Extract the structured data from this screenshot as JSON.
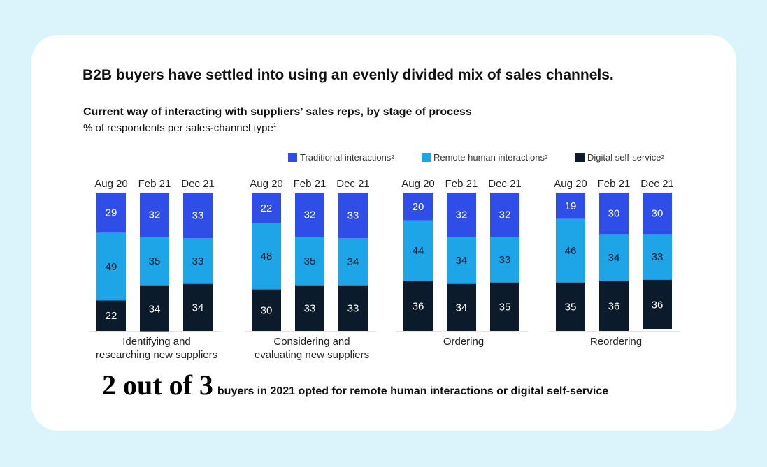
{
  "headline": "B2B buyers have settled into using an evenly divided mix of sales channels.",
  "subtitle": "Current way of interacting with suppliers’ sales reps, by stage of process",
  "unit_text": "% of respondents per sales-channel type",
  "unit_footnote": "1",
  "footer": {
    "big": "2 out of 3",
    "small": "buyers in 2021 opted for remote human interactions or digital self-service"
  },
  "colors": {
    "traditional": "#2f4ee8",
    "remote": "#1da5e8",
    "digital": "#0c1b2c"
  },
  "chart_data": {
    "type": "bar",
    "stacked": true,
    "title": "Current way of interacting with suppliers’ sales reps, by stage of process",
    "ylabel": "% of respondents per sales-channel type",
    "legend": [
      {
        "key": "traditional",
        "label": "Traditional interactions",
        "footnote": "2"
      },
      {
        "key": "remote",
        "label": "Remote human interactions",
        "footnote": "2"
      },
      {
        "key": "digital",
        "label": "Digital self-service",
        "footnote": "2"
      }
    ],
    "periods": [
      "Aug 20",
      "Feb 21",
      "Dec 21"
    ],
    "groups": [
      {
        "label": [
          "Identifying and",
          "researching new suppliers"
        ],
        "series": {
          "traditional": [
            29,
            32,
            33
          ],
          "remote": [
            49,
            35,
            33
          ],
          "digital": [
            22,
            34,
            34
          ]
        }
      },
      {
        "label": [
          "Considering and",
          "evaluating new suppliers"
        ],
        "series": {
          "traditional": [
            22,
            32,
            33
          ],
          "remote": [
            48,
            35,
            34
          ],
          "digital": [
            30,
            33,
            33
          ]
        }
      },
      {
        "label": [
          "Ordering"
        ],
        "series": {
          "traditional": [
            20,
            32,
            32
          ],
          "remote": [
            44,
            34,
            33
          ],
          "digital": [
            36,
            34,
            35
          ]
        }
      },
      {
        "label": [
          "Reordering"
        ],
        "series": {
          "traditional": [
            19,
            30,
            30
          ],
          "remote": [
            46,
            34,
            33
          ],
          "digital": [
            35,
            36,
            36
          ]
        }
      }
    ]
  }
}
